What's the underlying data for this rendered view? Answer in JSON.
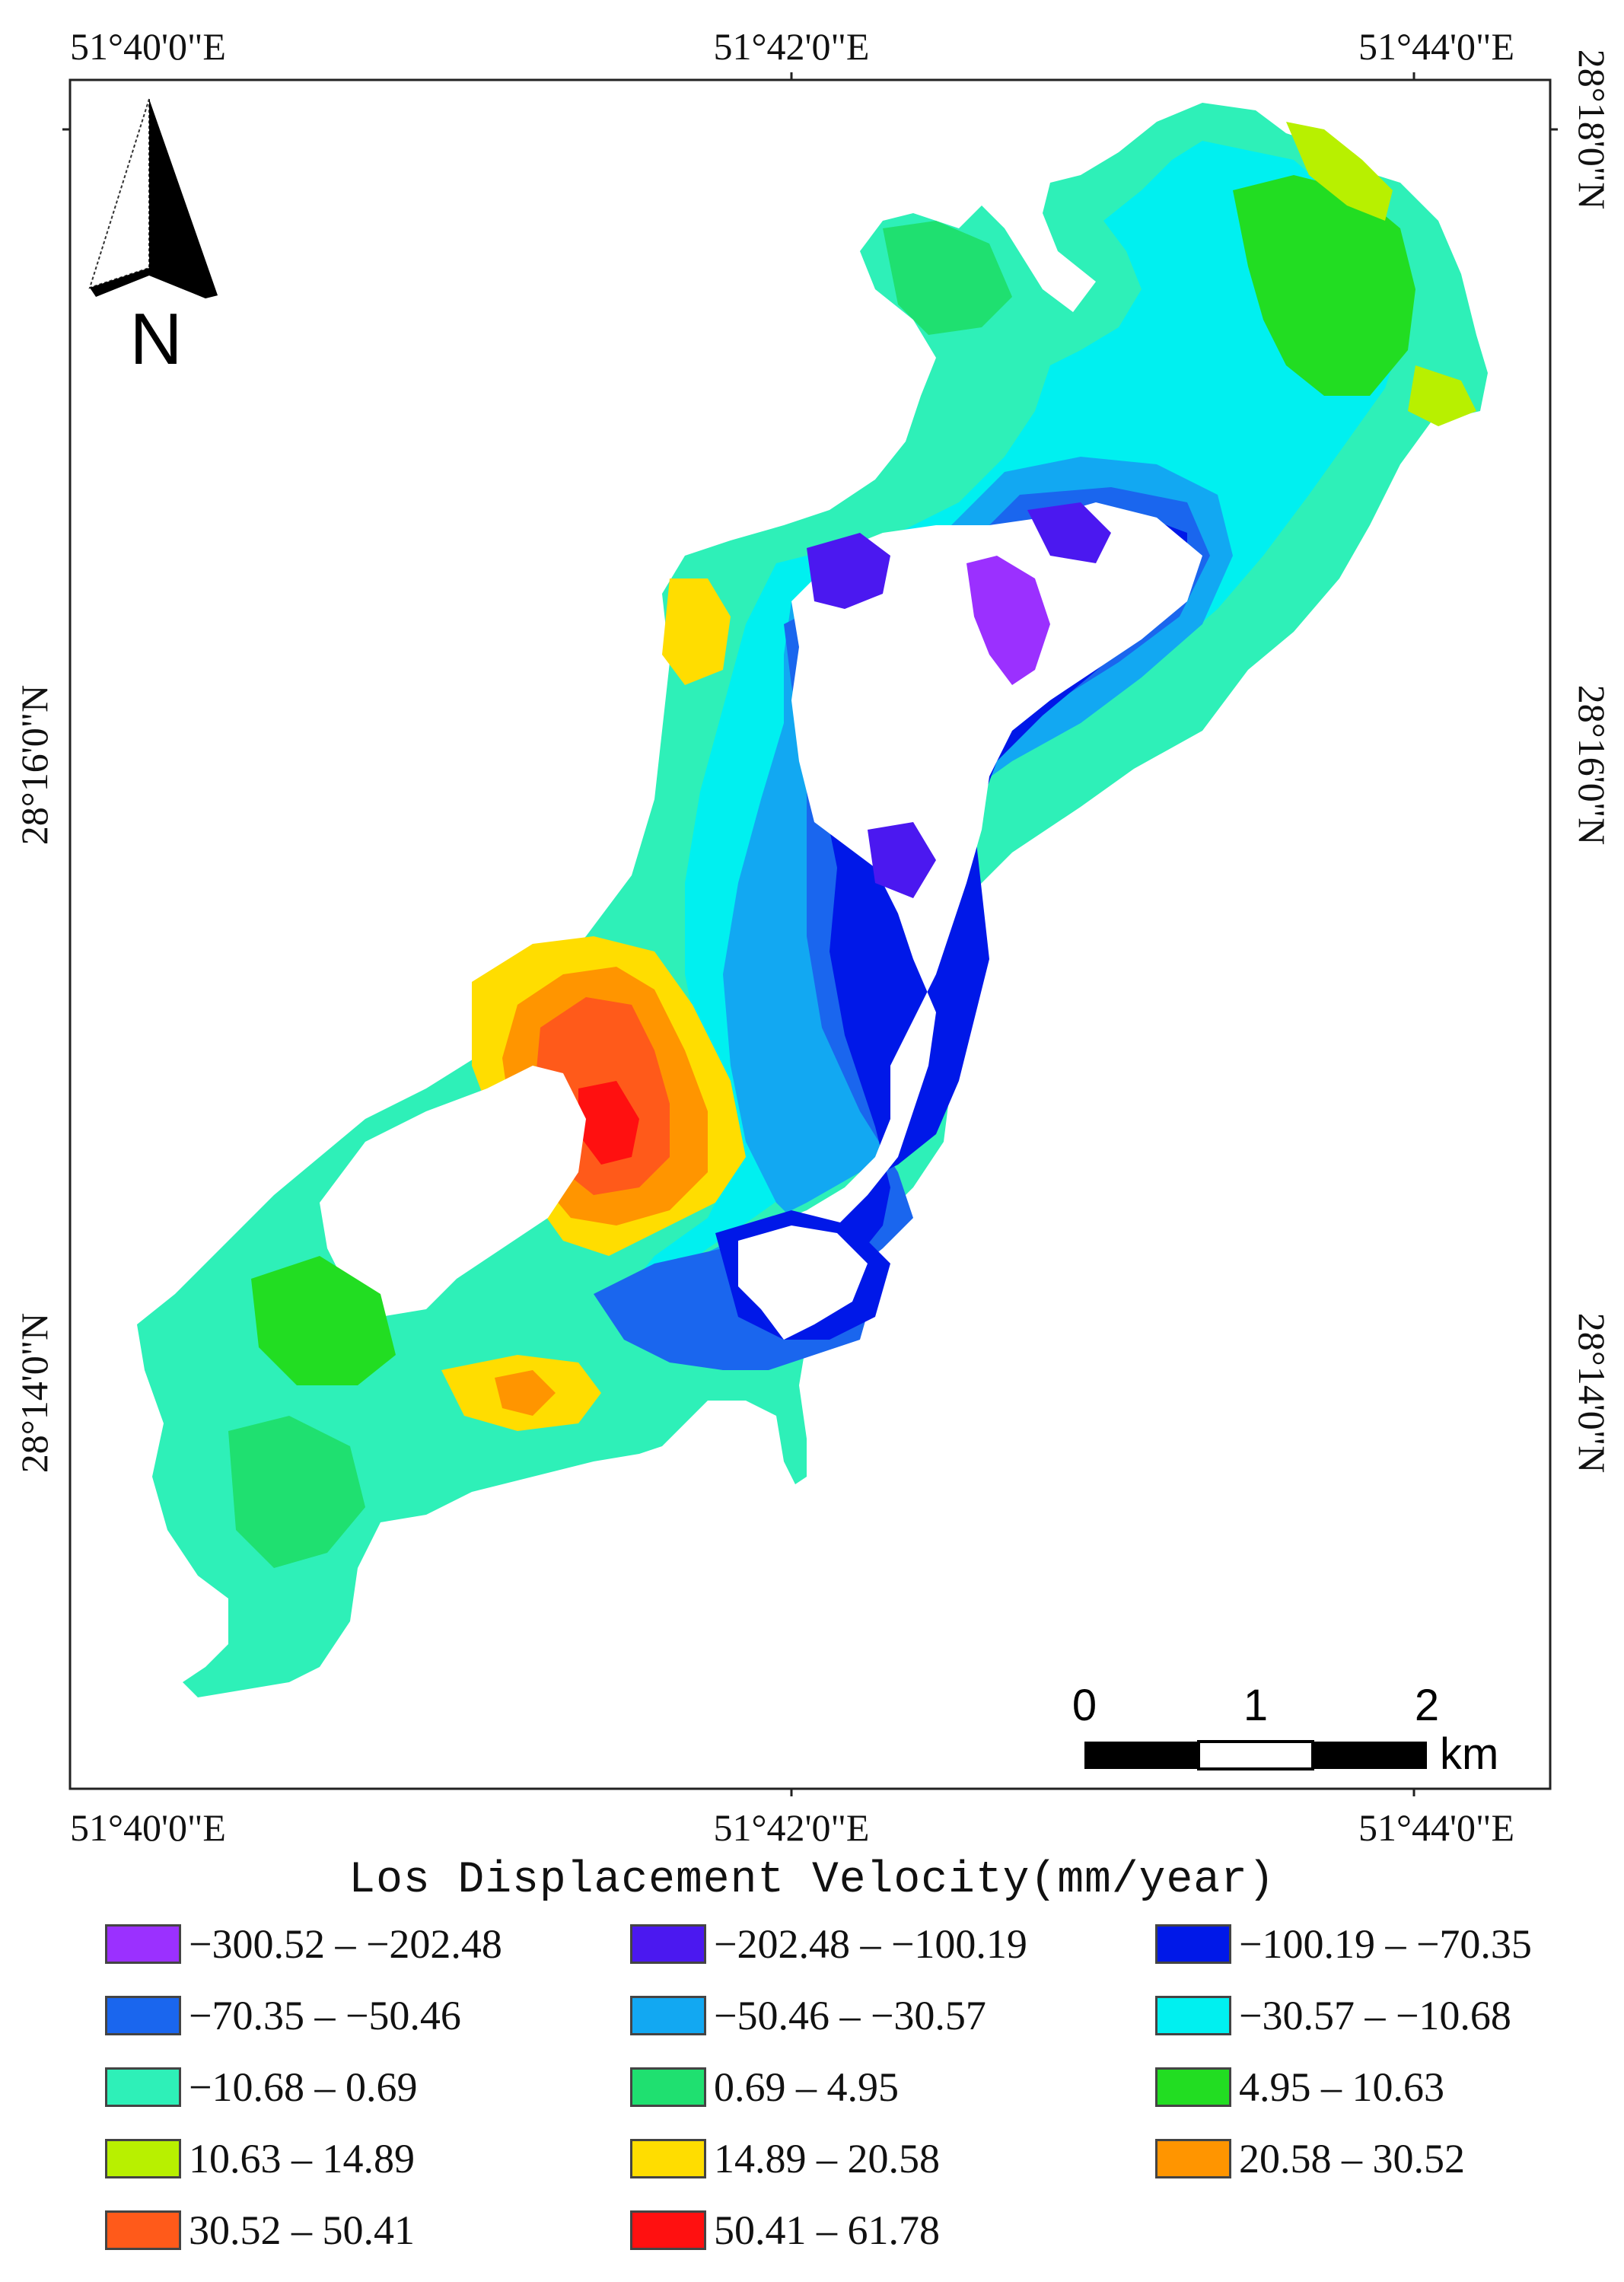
{
  "map": {
    "top_labels": [
      "51°40'0\"E",
      "51°42'0\"E",
      "51°44'0\"E"
    ],
    "bottom_labels": [
      "51°40'0\"E",
      "51°42'0\"E",
      "51°44'0\"E"
    ],
    "left_labels": [
      "28°16'0\"N",
      "28°14'0\"N"
    ],
    "right_labels": [
      "28°18'0\"N",
      "28°16'0\"N",
      "28°14'0\"N"
    ],
    "north_label": "N",
    "north_arrow_icon": "north-arrow-icon",
    "scale": {
      "ticks": [
        "0",
        "1",
        "2"
      ],
      "unit": "km"
    }
  },
  "legend": {
    "title": "Los Displacement Velocity(mm/year)",
    "items": [
      {
        "label": "−300.52 – −202.48",
        "color": "#9b30ff"
      },
      {
        "label": "−202.48 – −100.19",
        "color": "#4b18f0"
      },
      {
        "label": "−100.19 – −70.35",
        "color": "#0018e8"
      },
      {
        "label": "−70.35 – −50.46",
        "color": "#1a66ee"
      },
      {
        "label": "−50.46 – −30.57",
        "color": "#12a8f2"
      },
      {
        "label": "−30.57 – −10.68",
        "color": "#00f0f0"
      },
      {
        "label": "−10.68 – 0.69",
        "color": "#2ef0b8"
      },
      {
        "label": "0.69 – 4.95",
        "color": "#1fe070"
      },
      {
        "label": "4.95 – 10.63",
        "color": "#22dd22"
      },
      {
        "label": "10.63 – 14.89",
        "color": "#b8f000"
      },
      {
        "label": "14.89 – 20.58",
        "color": "#ffdd00"
      },
      {
        "label": "20.58 – 30.52",
        "color": "#ff9500"
      },
      {
        "label": "30.52 – 50.41",
        "color": "#ff5a1a"
      },
      {
        "label": "50.41 – 61.78",
        "color": "#ff1010"
      }
    ]
  }
}
